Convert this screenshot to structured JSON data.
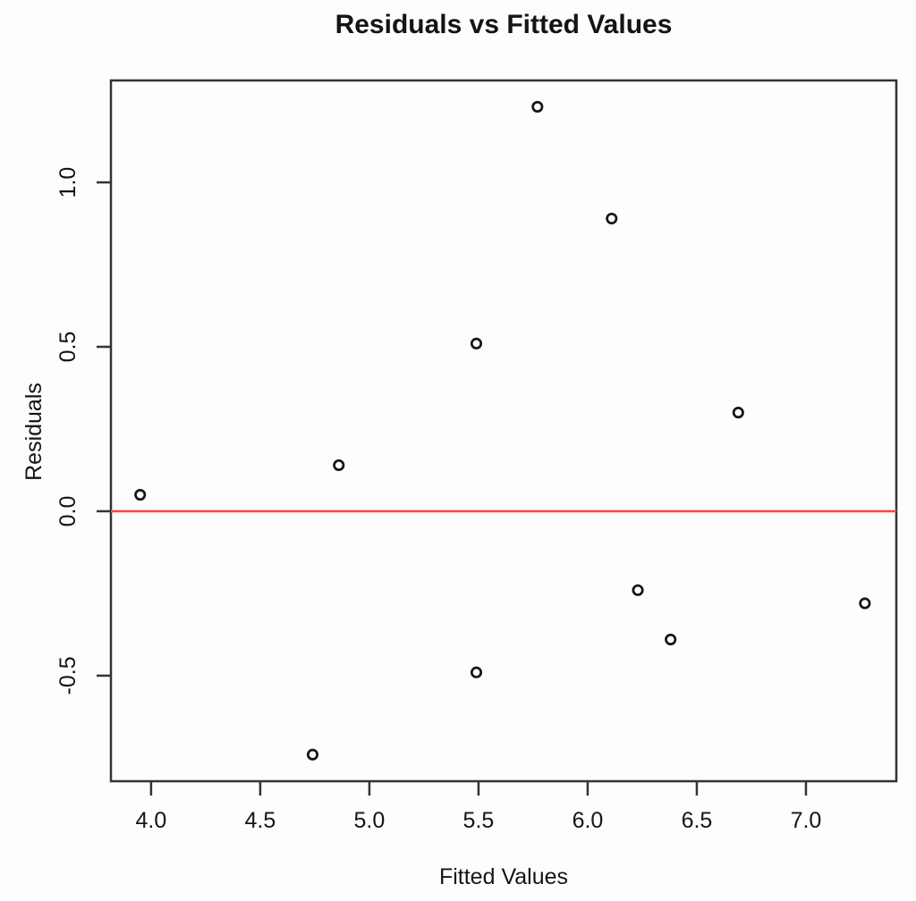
{
  "figure": {
    "title": "Residuals vs Fitted Values",
    "x_axis_label": "Fitted Values",
    "y_axis_label": "Residuals"
  },
  "chart_data": {
    "type": "scatter",
    "title": "Residuals vs Fitted Values",
    "xlabel": "Fitted Values",
    "ylabel": "Residuals",
    "xlim": [
      3.816,
      7.414
    ],
    "ylim": [
      -0.821,
      1.31
    ],
    "x_ticks": [
      4.0,
      4.5,
      5.0,
      5.5,
      6.0,
      6.5,
      7.0
    ],
    "x_tick_labels": [
      "4.0",
      "4.5",
      "5.0",
      "5.5",
      "6.0",
      "6.5",
      "7.0"
    ],
    "y_ticks": [
      -0.5,
      0.0,
      0.5,
      1.0
    ],
    "y_tick_labels": [
      "-0.5",
      "0.0",
      "0.5",
      "1.0"
    ],
    "grid": false,
    "legend": "none",
    "marker": "open-circle",
    "reference_line": {
      "y": 0.0,
      "color": "#ff4444"
    },
    "points": [
      {
        "fitted": 3.95,
        "residual": 0.05
      },
      {
        "fitted": 4.74,
        "residual": -0.74
      },
      {
        "fitted": 4.86,
        "residual": 0.14
      },
      {
        "fitted": 5.49,
        "residual": 0.51
      },
      {
        "fitted": 5.49,
        "residual": -0.49
      },
      {
        "fitted": 5.77,
        "residual": 1.23
      },
      {
        "fitted": 6.11,
        "residual": 0.89
      },
      {
        "fitted": 6.23,
        "residual": -0.24
      },
      {
        "fitted": 6.38,
        "residual": -0.39
      },
      {
        "fitted": 6.69,
        "residual": 0.3
      },
      {
        "fitted": 7.27,
        "residual": -0.28
      }
    ],
    "colors": {
      "marker": "#141414",
      "axis": "#333333",
      "text": "#141414",
      "reference": "#ff4444",
      "background": "#fdfdfd"
    }
  }
}
